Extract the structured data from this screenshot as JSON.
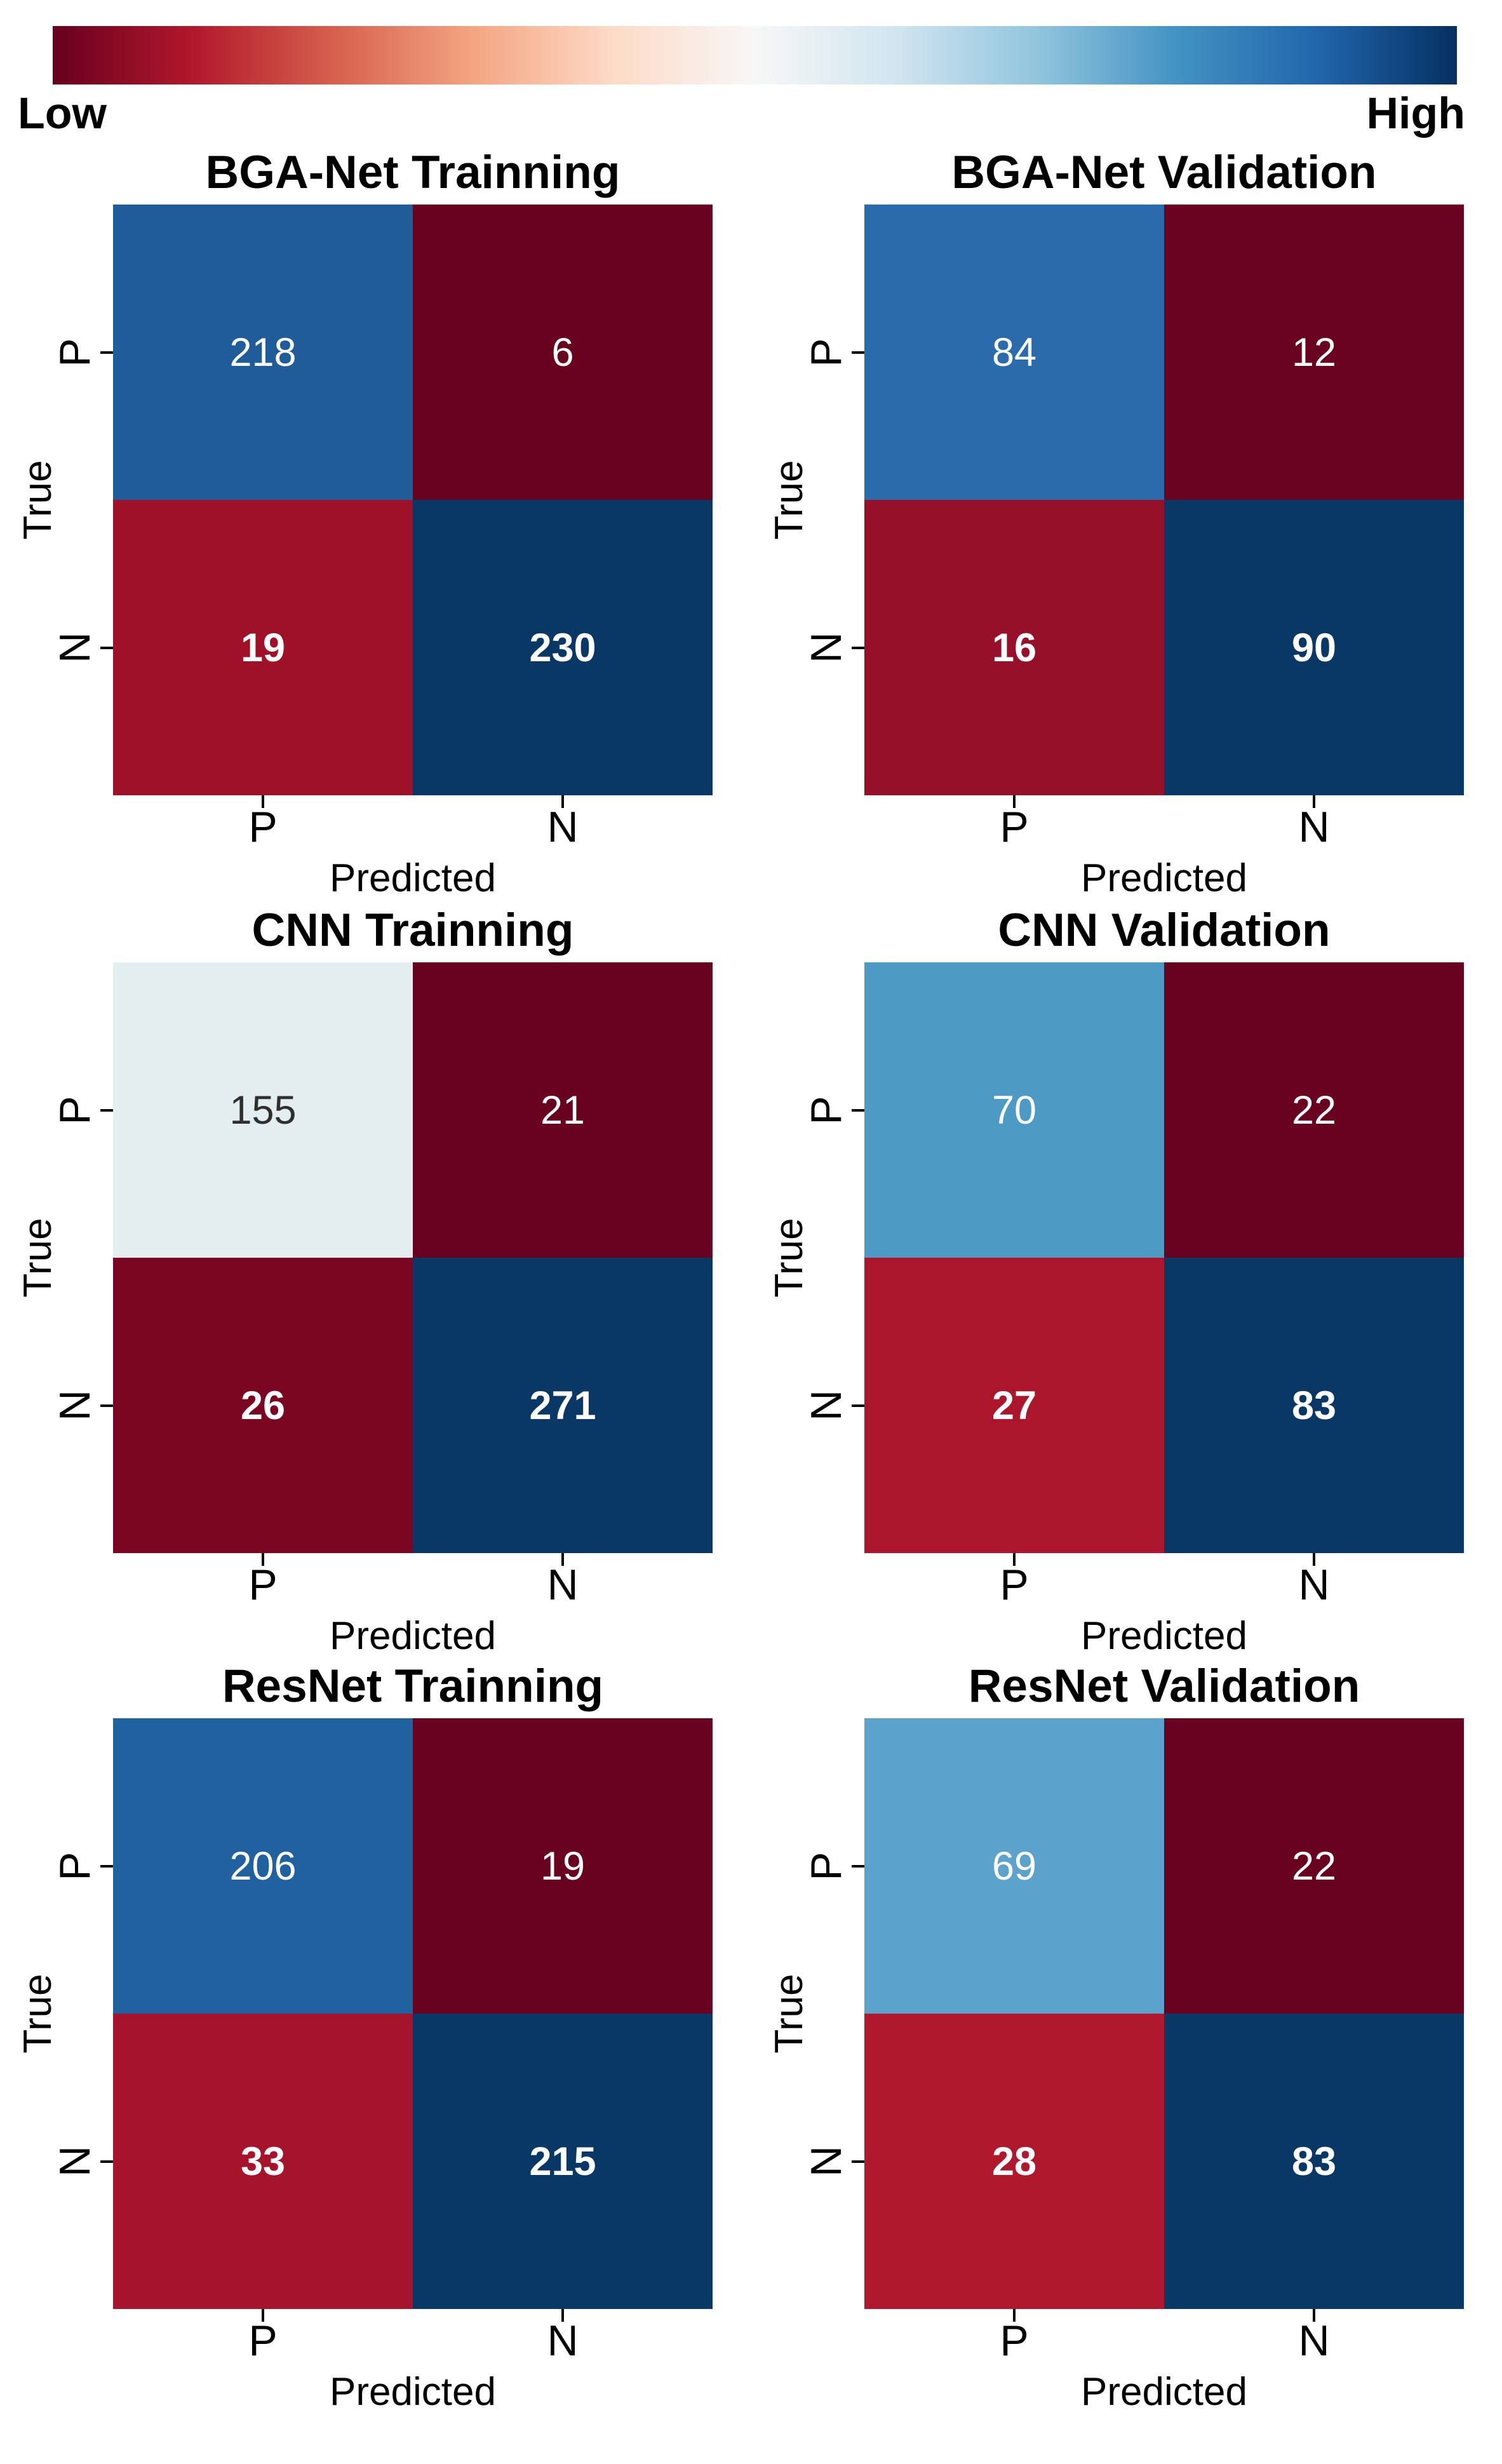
{
  "colorbar": {
    "low_label": "Low",
    "high_label": "High",
    "gradient_stops": [
      "#67001f",
      "#b2182b",
      "#d6604d",
      "#f4a582",
      "#fddbc7",
      "#f7f7f7",
      "#d1e5f0",
      "#92c5de",
      "#4393c3",
      "#2166ac",
      "#053061"
    ]
  },
  "chart_data": [
    {
      "type": "heatmap",
      "title": "BGA-Net Trainning",
      "xlabel": "Predicted",
      "ylabel": "True",
      "x_ticks": [
        "P",
        "N"
      ],
      "y_ticks": [
        "P",
        "N"
      ],
      "values": [
        [
          218,
          6
        ],
        [
          19,
          230
        ]
      ],
      "colormap": "RdBu",
      "legend_position": "shared-top"
    },
    {
      "type": "heatmap",
      "title": "BGA-Net Validation",
      "xlabel": "Predicted",
      "ylabel": "True",
      "x_ticks": [
        "P",
        "N"
      ],
      "y_ticks": [
        "P",
        "N"
      ],
      "values": [
        [
          84,
          12
        ],
        [
          16,
          90
        ]
      ],
      "colormap": "RdBu",
      "legend_position": "shared-top"
    },
    {
      "type": "heatmap",
      "title": "CNN Trainning",
      "xlabel": "Predicted",
      "ylabel": "True",
      "x_ticks": [
        "P",
        "N"
      ],
      "y_ticks": [
        "P",
        "N"
      ],
      "values": [
        [
          155,
          21
        ],
        [
          26,
          271
        ]
      ],
      "colormap": "RdBu",
      "legend_position": "shared-top"
    },
    {
      "type": "heatmap",
      "title": "CNN Validation",
      "xlabel": "Predicted",
      "ylabel": "True",
      "x_ticks": [
        "P",
        "N"
      ],
      "y_ticks": [
        "P",
        "N"
      ],
      "values": [
        [
          70,
          22
        ],
        [
          27,
          83
        ]
      ],
      "colormap": "RdBu",
      "legend_position": "shared-top"
    },
    {
      "type": "heatmap",
      "title": "ResNet Trainning",
      "xlabel": "Predicted",
      "ylabel": "True",
      "x_ticks": [
        "P",
        "N"
      ],
      "y_ticks": [
        "P",
        "N"
      ],
      "values": [
        [
          206,
          19
        ],
        [
          33,
          215
        ]
      ],
      "colormap": "RdBu",
      "legend_position": "shared-top"
    },
    {
      "type": "heatmap",
      "title": "ResNet Validation",
      "xlabel": "Predicted",
      "ylabel": "True",
      "x_ticks": [
        "P",
        "N"
      ],
      "y_ticks": [
        "P",
        "N"
      ],
      "values": [
        [
          69,
          22
        ],
        [
          28,
          83
        ]
      ],
      "colormap": "RdBu",
      "legend_position": "shared-top"
    }
  ],
  "panels": [
    {
      "cells": [
        [
          {
            "bg": "#1f5c99",
            "fg": "#ffffff"
          },
          {
            "bg": "#68021f",
            "fg": "#ffffff"
          }
        ],
        [
          {
            "bg": "#9e1127",
            "fg": "#ffffff"
          },
          {
            "bg": "#0a3866",
            "fg": "#ffffff"
          }
        ]
      ]
    },
    {
      "cells": [
        [
          {
            "bg": "#2a6cab",
            "fg": "#ffffff"
          },
          {
            "bg": "#6a0320",
            "fg": "#ffffff"
          }
        ],
        [
          {
            "bg": "#97102a",
            "fg": "#ffffff"
          },
          {
            "bg": "#0a3866",
            "fg": "#ffffff"
          }
        ]
      ]
    },
    {
      "cells": [
        [
          {
            "bg": "#e4eef1",
            "fg": "#2f2f2f"
          },
          {
            "bg": "#68021f",
            "fg": "#ffffff"
          }
        ],
        [
          {
            "bg": "#7b0622",
            "fg": "#ffffff"
          },
          {
            "bg": "#0a3866",
            "fg": "#ffffff"
          }
        ]
      ]
    },
    {
      "cells": [
        [
          {
            "bg": "#4d9ac5",
            "fg": "#ffffff"
          },
          {
            "bg": "#68021f",
            "fg": "#ffffff"
          }
        ],
        [
          {
            "bg": "#ab162c",
            "fg": "#ffffff"
          },
          {
            "bg": "#0a3866",
            "fg": "#ffffff"
          }
        ]
      ]
    },
    {
      "cells": [
        [
          {
            "bg": "#20619f",
            "fg": "#ffffff"
          },
          {
            "bg": "#68021f",
            "fg": "#ffffff"
          }
        ],
        [
          {
            "bg": "#a6142b",
            "fg": "#ffffff"
          },
          {
            "bg": "#0a3866",
            "fg": "#ffffff"
          }
        ]
      ]
    },
    {
      "cells": [
        [
          {
            "bg": "#5ba3cc",
            "fg": "#ffffff"
          },
          {
            "bg": "#68021f",
            "fg": "#ffffff"
          }
        ],
        [
          {
            "bg": "#b0182d",
            "fg": "#ffffff"
          },
          {
            "bg": "#0a3866",
            "fg": "#ffffff"
          }
        ]
      ]
    }
  ]
}
